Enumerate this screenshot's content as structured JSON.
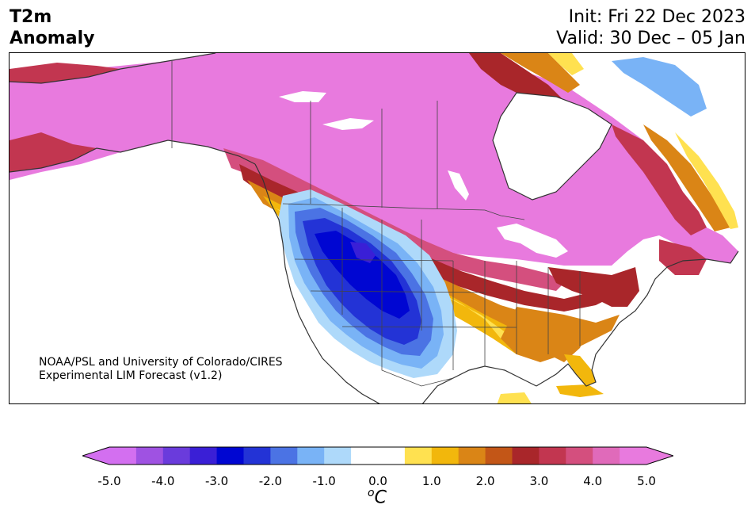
{
  "header": {
    "title_line1": "T2m",
    "title_line2": "Anomaly",
    "init": "Init: Fri 22 Dec 2023",
    "valid": "Valid: 30 Dec – 05 Jan"
  },
  "credit": {
    "line1": "NOAA/PSL and University of Colorado/CIRES",
    "line2": "Experimental LIM Forecast (v1.2)"
  },
  "colorbar": {
    "unit": "°C",
    "unit_prefix": "o",
    "unit_symbol": "C",
    "ticks": [
      "-5.0",
      "-4.0",
      "-3.0",
      "-2.0",
      "-1.0",
      "0.0",
      "1.0",
      "2.0",
      "3.0",
      "4.0",
      "5.0"
    ],
    "range": [
      -5.0,
      5.0
    ],
    "bin_width": 0.5,
    "colors": [
      "#d36ff0",
      "#9f52e2",
      "#6a3bdc",
      "#3a1fd6",
      "#0006d2",
      "#2333d6",
      "#4b73e4",
      "#79b3f6",
      "#aed9fa",
      "#ffffff",
      "#ffffff",
      "#ffe150",
      "#f2b70c",
      "#da8516",
      "#c35617",
      "#a9262a",
      "#c23650",
      "#d44f7e",
      "#e06aba",
      "#e87ade"
    ],
    "extend_low_color": "#d36ff0",
    "extend_high_color": "#e87ade"
  },
  "map": {
    "region": "North America",
    "colors": {
      "pink": "#e87ade",
      "magenta": "#e06aba",
      "rose": "#d44f7e",
      "crimson": "#c23650",
      "red": "#a9262a",
      "rust": "#c35617",
      "orange": "#da8516",
      "gold": "#f2b70c",
      "yellow": "#ffe150",
      "paleblue": "#aed9fa",
      "lightblue": "#79b3f6",
      "blue": "#4b73e4",
      "royal": "#2333d6",
      "deep": "#0006d2",
      "violet": "#3a1fd6",
      "outline": "#333333"
    }
  }
}
